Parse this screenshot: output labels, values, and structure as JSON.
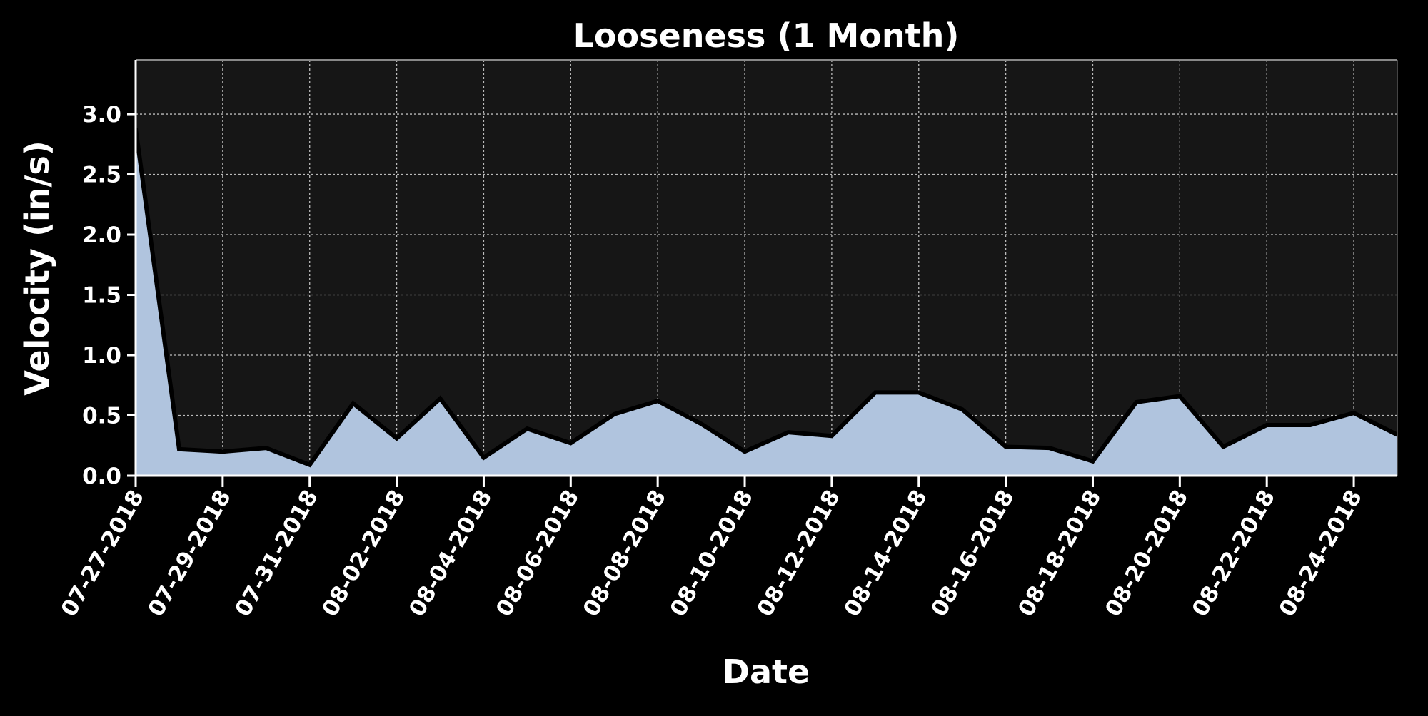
{
  "chart_data": {
    "type": "area",
    "title": "Looseness (1 Month)",
    "xlabel": "Date",
    "ylabel": "Velocity (in/s)",
    "x": [
      "07-27-2018",
      "07-28-2018",
      "07-29-2018",
      "07-30-2018",
      "07-31-2018",
      "08-01-2018",
      "08-02-2018",
      "08-03-2018",
      "08-04-2018",
      "08-05-2018",
      "08-06-2018",
      "08-07-2018",
      "08-08-2018",
      "08-09-2018",
      "08-10-2018",
      "08-11-2018",
      "08-12-2018",
      "08-13-2018",
      "08-14-2018",
      "08-15-2018",
      "08-16-2018",
      "08-17-2018",
      "08-18-2018",
      "08-19-2018",
      "08-20-2018",
      "08-21-2018",
      "08-22-2018",
      "08-23-2018",
      "08-24-2018",
      "08-25-2018"
    ],
    "series": [
      {
        "values": [
          2.88,
          0.22,
          0.2,
          0.23,
          0.09,
          0.6,
          0.31,
          0.64,
          0.15,
          0.39,
          0.27,
          0.51,
          0.62,
          0.43,
          0.2,
          0.36,
          0.33,
          0.69,
          0.69,
          0.55,
          0.24,
          0.23,
          0.12,
          0.61,
          0.66,
          0.24,
          0.42,
          0.42,
          0.52,
          0.34
        ]
      }
    ],
    "xticks": [
      "07-27-2018",
      "07-29-2018",
      "07-31-2018",
      "08-02-2018",
      "08-04-2018",
      "08-06-2018",
      "08-08-2018",
      "08-10-2018",
      "08-12-2018",
      "08-14-2018",
      "08-16-2018",
      "08-18-2018",
      "08-20-2018",
      "08-22-2018",
      "08-24-2018"
    ],
    "yticks": [
      "0.0",
      "0.5",
      "1.0",
      "1.5",
      "2.0",
      "2.5",
      "3.0"
    ],
    "ylim": [
      0,
      3.45
    ],
    "xlim": [
      "07-27-2018",
      "08-25-2018"
    ],
    "grid": true,
    "colors": {
      "background": "#000000",
      "plot_background": "#161616",
      "area_fill": "#b0c4de",
      "line": "#000000",
      "grid": "#bbbbbb",
      "text": "#ffffff"
    }
  }
}
